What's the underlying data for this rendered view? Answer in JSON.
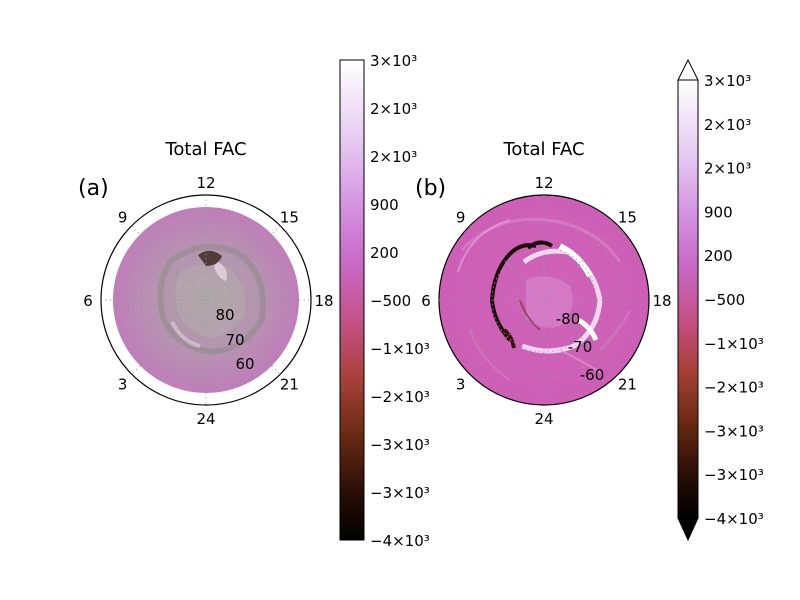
{
  "chart_data": [
    {
      "type": "heatmap",
      "projection": "polar",
      "panel_label": "(a)",
      "title": "Total FAC",
      "mlt_labels": [
        "12",
        "15",
        "9",
        "18",
        "6",
        "21",
        "3",
        "24"
      ],
      "latitude_labels": [
        "80",
        "70",
        "60"
      ],
      "latitude_range": [
        50,
        90
      ],
      "grid": true,
      "colorbar": {
        "ticks": [
          "3×10³",
          "2×10³",
          "2×10³",
          "900",
          "200",
          "−500",
          "−1×10³",
          "−2×10³",
          "−3×10³",
          "−3×10³",
          "−4×10³"
        ],
        "extend": "neither"
      }
    },
    {
      "type": "heatmap",
      "projection": "polar",
      "panel_label": "(b)",
      "title": "Total FAC",
      "mlt_labels": [
        "12",
        "15",
        "9",
        "18",
        "6",
        "21",
        "3",
        "24"
      ],
      "latitude_labels": [
        "-80",
        "-70",
        "-60"
      ],
      "latitude_range": [
        -50,
        -90
      ],
      "grid": true,
      "colorbar": {
        "ticks": [
          "3×10³",
          "2×10³",
          "2×10³",
          "900",
          "200",
          "−500",
          "−1×10³",
          "−2×10³",
          "−3×10³",
          "−3×10³",
          "−4×10³"
        ],
        "extend": "both"
      }
    }
  ]
}
